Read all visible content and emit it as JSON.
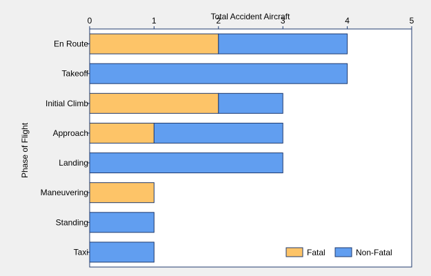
{
  "chart_data": {
    "type": "bar",
    "orientation": "horizontal",
    "stacked": true,
    "xlabel": "Total Accident Aircraft",
    "ylabel": "Phase of Flight",
    "xlim": [
      0,
      5
    ],
    "x_ticks": [
      "0",
      "1",
      "2",
      "3",
      "4",
      "5"
    ],
    "x_axis_position": "top",
    "categories": [
      "En Route",
      "Takeoff",
      "Initial Climb",
      "Approach",
      "Landing",
      "Maneuvering",
      "Standing",
      "Taxi"
    ],
    "series": [
      {
        "name": "Fatal",
        "color": "#fdc468",
        "values": [
          2,
          0,
          2,
          1,
          0,
          1,
          0,
          0
        ]
      },
      {
        "name": "Non-Fatal",
        "color": "#619ef0",
        "values": [
          2,
          4,
          1,
          2,
          3,
          0,
          1,
          1
        ]
      }
    ],
    "grid": false,
    "legend_position": "bottom-right"
  }
}
